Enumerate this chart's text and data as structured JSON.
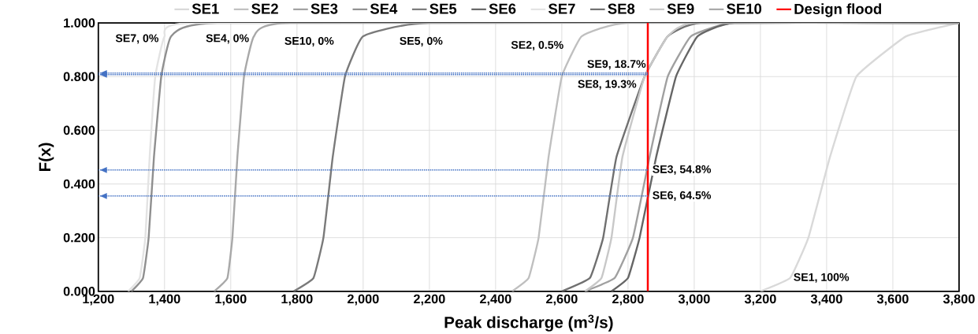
{
  "chart_data": {
    "type": "line",
    "xlabel": "Peak discharge (m$^{3}$/s)",
    "ylabel": "F(x)",
    "xlim": [
      1200,
      3800
    ],
    "ylim": [
      0,
      1
    ],
    "xticks": [
      {
        "value": 1200,
        "label": "1,200"
      },
      {
        "value": 1400,
        "label": "1,400"
      },
      {
        "value": 1600,
        "label": "1,600"
      },
      {
        "value": 1800,
        "label": "1,800"
      },
      {
        "value": 2000,
        "label": "2,000"
      },
      {
        "value": 2200,
        "label": "2,200"
      },
      {
        "value": 2400,
        "label": "2,400"
      },
      {
        "value": 2600,
        "label": "2,600"
      },
      {
        "value": 2800,
        "label": "2,800"
      },
      {
        "value": 3000,
        "label": "3,000"
      },
      {
        "value": 3200,
        "label": "3,200"
      },
      {
        "value": 3400,
        "label": "3,400"
      },
      {
        "value": 3600,
        "label": "3,600"
      },
      {
        "value": 3800,
        "label": "3,800"
      }
    ],
    "yticks": [
      {
        "value": 0,
        "label": "0.000"
      },
      {
        "value": 0.2,
        "label": "0.200"
      },
      {
        "value": 0.4,
        "label": "0.400"
      },
      {
        "value": 0.6,
        "label": "0.600"
      },
      {
        "value": 0.8,
        "label": "0.800"
      },
      {
        "value": 1,
        "label": "1.000"
      }
    ],
    "grid": true,
    "legend": "top",
    "marker": "none",
    "line_style": "solid",
    "series": [
      {
        "name": "SE1",
        "color": "#d9d9d9",
        "x": [
          3200,
          3290,
          3345,
          3410,
          3490,
          3640,
          3800
        ],
        "values": [
          0,
          0.05,
          0.2,
          0.5,
          0.8,
          0.95,
          1
        ]
      },
      {
        "name": "SE2",
        "color": "#bfbfbf",
        "x": [
          2450,
          2500,
          2530,
          2560,
          2600,
          2660,
          2800,
          3800
        ],
        "values": [
          0,
          0.05,
          0.2,
          0.5,
          0.8,
          0.95,
          1,
          1
        ]
      },
      {
        "name": "SE3",
        "color": "#a0a0a0",
        "x": [
          2670,
          2760,
          2815,
          2865,
          2920,
          2990,
          3120,
          3800
        ],
        "values": [
          0,
          0.05,
          0.2,
          0.5,
          0.8,
          0.95,
          1,
          1
        ]
      },
      {
        "name": "SE4",
        "color": "#8f8f8f",
        "x": [
          1300,
          1335,
          1352,
          1368,
          1390,
          1420,
          1560,
          3800
        ],
        "values": [
          0,
          0.05,
          0.2,
          0.5,
          0.8,
          0.95,
          1,
          1
        ]
      },
      {
        "name": "SE5",
        "color": "#7a7a7a",
        "x": [
          1790,
          1850,
          1880,
          1908,
          1945,
          2000,
          2200,
          3800
        ],
        "values": [
          0,
          0.05,
          0.2,
          0.5,
          0.8,
          0.95,
          1,
          1
        ]
      },
      {
        "name": "SE6",
        "color": "#666666",
        "x": [
          2750,
          2800,
          2835,
          2885,
          2945,
          3010,
          3120,
          3800
        ],
        "values": [
          0,
          0.05,
          0.2,
          0.5,
          0.8,
          0.95,
          1,
          1
        ]
      },
      {
        "name": "SE7",
        "color": "#e3e3e3",
        "x": [
          1290,
          1325,
          1342,
          1355,
          1372,
          1400,
          1490,
          3800
        ],
        "values": [
          0,
          0.05,
          0.2,
          0.5,
          0.8,
          0.95,
          1,
          1
        ]
      },
      {
        "name": "SE8",
        "color": "#707070",
        "x": [
          2600,
          2685,
          2725,
          2765,
          2850,
          2920,
          3020,
          3800
        ],
        "values": [
          0,
          0.05,
          0.2,
          0.5,
          0.8,
          0.95,
          1,
          1
        ]
      },
      {
        "name": "SE9",
        "color": "#c8c8c8",
        "x": [
          2670,
          2720,
          2750,
          2783,
          2850,
          2920,
          3000,
          3800
        ],
        "values": [
          0,
          0.05,
          0.2,
          0.5,
          0.8,
          0.95,
          1,
          1
        ]
      },
      {
        "name": "SE10",
        "color": "#a8a8a8",
        "x": [
          1550,
          1590,
          1605,
          1620,
          1640,
          1670,
          1780,
          3800
        ],
        "values": [
          0,
          0.05,
          0.2,
          0.5,
          0.8,
          0.95,
          1,
          1
        ]
      }
    ],
    "ref_lines": [
      {
        "axis": "x",
        "value": 2860,
        "label": "Design flood",
        "color": "#ff0000"
      },
      {
        "axis": "y",
        "value": 0.813,
        "label": "SE9, 18.7%",
        "color": "#4472c4",
        "line_style": "dotted"
      },
      {
        "axis": "y",
        "value": 0.807,
        "label": "SE8, 19.3%",
        "color": "#4472c4",
        "line_style": "dotted"
      },
      {
        "axis": "y",
        "value": 0.452,
        "label": "SE3, 54.8%",
        "color": "#4472c4",
        "line_style": "dotted"
      },
      {
        "axis": "y",
        "value": 0.355,
        "label": "SE6, 64.5%",
        "color": "#4472c4",
        "line_style": "dotted"
      }
    ],
    "annotations": [
      "SE7, 0%",
      "SE4, 0%",
      "SE10, 0%",
      "SE5, 0%",
      "SE2, 0.5%",
      "SE1, 100%"
    ]
  }
}
